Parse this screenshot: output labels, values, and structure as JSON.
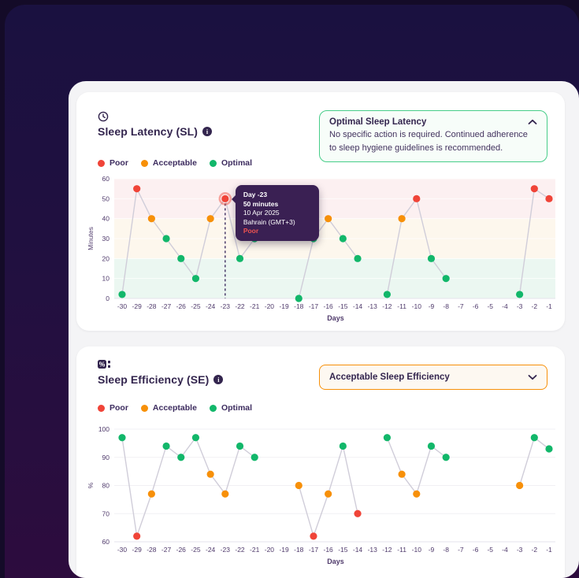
{
  "legend": [
    "Poor",
    "Acceptable",
    "Optimal"
  ],
  "colors": {
    "poor": "#f04438",
    "acceptable": "#f79009",
    "optimal": "#12b76a",
    "alert_border": "#47cd89",
    "dropdown_border": "#f79009",
    "tooltip_bg": "#3a2053",
    "tooltip_status_text": "#ef5350",
    "ink": "#33254e",
    "axis_text": "#4f3a6b"
  },
  "card_sl": {
    "title": "Sleep Latency (SL)",
    "alert": {
      "title": "Optimal Sleep Latency",
      "body": "No specific action is required. Continued adherence to sleep hygiene guidelines is recommended."
    },
    "tooltip": {
      "lines": [
        "Day -23",
        "50 minutes",
        "10 Apr 2025",
        "Bahrain (GMT+3)"
      ],
      "status": "Poor"
    }
  },
  "card_se": {
    "title": "Sleep Efficiency (SE)",
    "dropdown_value": "Acceptable Sleep Efficiency"
  },
  "chart_data": [
    {
      "type": "scatter",
      "title": "Sleep Latency (SL)",
      "xlabel": "Days",
      "ylabel": "Minutes",
      "ylim": [
        0,
        60
      ],
      "yticks": [
        0,
        10,
        20,
        30,
        40,
        50,
        60
      ],
      "x": [
        -30,
        -29,
        -28,
        -27,
        -26,
        -25,
        -24,
        -23,
        -22,
        -21,
        -20,
        -19,
        -18,
        -17,
        -16,
        -15,
        -14,
        -13,
        -12,
        -11,
        -10,
        -9,
        -8,
        -7,
        -6,
        -5,
        -4,
        -3,
        -2,
        -1
      ],
      "points": [
        {
          "day": -30,
          "value": 2,
          "status": "optimal"
        },
        {
          "day": -29,
          "value": 55,
          "status": "poor"
        },
        {
          "day": -28,
          "value": 40,
          "status": "acceptable"
        },
        {
          "day": -27,
          "value": 30,
          "status": "optimal"
        },
        {
          "day": -26,
          "value": 20,
          "status": "optimal"
        },
        {
          "day": -25,
          "value": 10,
          "status": "optimal"
        },
        {
          "day": -24,
          "value": 40,
          "status": "acceptable"
        },
        {
          "day": -23,
          "value": 50,
          "status": "poor"
        },
        {
          "day": -22,
          "value": 20,
          "status": "optimal"
        },
        {
          "day": -21,
          "value": 30,
          "status": "optimal"
        },
        {
          "day": -18,
          "value": 0,
          "status": "optimal"
        },
        {
          "day": -17,
          "value": 30,
          "status": "optimal"
        },
        {
          "day": -16,
          "value": 40,
          "status": "acceptable"
        },
        {
          "day": -15,
          "value": 30,
          "status": "optimal"
        },
        {
          "day": -14,
          "value": 20,
          "status": "optimal"
        },
        {
          "day": -12,
          "value": 2,
          "status": "optimal"
        },
        {
          "day": -11,
          "value": 40,
          "status": "acceptable"
        },
        {
          "day": -10,
          "value": 50,
          "status": "poor"
        },
        {
          "day": -9,
          "value": 20,
          "status": "optimal"
        },
        {
          "day": -8,
          "value": 10,
          "status": "optimal"
        },
        {
          "day": -3,
          "value": 2,
          "status": "optimal"
        },
        {
          "day": -2,
          "value": 55,
          "status": "poor"
        },
        {
          "day": -1,
          "value": 50,
          "status": "poor"
        }
      ],
      "bands": [
        {
          "from": 0,
          "to": 20,
          "color": "#ebf7f1"
        },
        {
          "from": 20,
          "to": 40,
          "color": "#fdf7ed"
        },
        {
          "from": 40,
          "to": 60,
          "color": "#fcf0f1"
        }
      ],
      "highlight": {
        "day": -23
      }
    },
    {
      "type": "scatter",
      "title": "Sleep Efficiency (SE)",
      "xlabel": "Days",
      "ylabel": "%",
      "ylim": [
        60,
        100
      ],
      "yticks": [
        60,
        70,
        80,
        90,
        100
      ],
      "x": [
        -30,
        -29,
        -28,
        -27,
        -26,
        -25,
        -24,
        -23,
        -22,
        -21,
        -20,
        -19,
        -18,
        -17,
        -16,
        -15,
        -14,
        -13,
        -12,
        -11,
        -10,
        -9,
        -8,
        -7,
        -6,
        -5,
        -4,
        -3,
        -2,
        -1
      ],
      "points": [
        {
          "day": -30,
          "value": 97,
          "status": "optimal"
        },
        {
          "day": -29,
          "value": 62,
          "status": "poor"
        },
        {
          "day": -28,
          "value": 77,
          "status": "acceptable"
        },
        {
          "day": -27,
          "value": 94,
          "status": "optimal"
        },
        {
          "day": -26,
          "value": 90,
          "status": "optimal"
        },
        {
          "day": -25,
          "value": 97,
          "status": "optimal"
        },
        {
          "day": -24,
          "value": 84,
          "status": "acceptable"
        },
        {
          "day": -23,
          "value": 77,
          "status": "acceptable"
        },
        {
          "day": -22,
          "value": 94,
          "status": "optimal"
        },
        {
          "day": -21,
          "value": 90,
          "status": "optimal"
        },
        {
          "day": -18,
          "value": 80,
          "status": "acceptable"
        },
        {
          "day": -17,
          "value": 62,
          "status": "poor"
        },
        {
          "day": -16,
          "value": 77,
          "status": "acceptable"
        },
        {
          "day": -15,
          "value": 94,
          "status": "optimal"
        },
        {
          "day": -14,
          "value": 70,
          "status": "poor"
        },
        {
          "day": -12,
          "value": 97,
          "status": "optimal"
        },
        {
          "day": -11,
          "value": 84,
          "status": "acceptable"
        },
        {
          "day": -10,
          "value": 77,
          "status": "acceptable"
        },
        {
          "day": -9,
          "value": 94,
          "status": "optimal"
        },
        {
          "day": -8,
          "value": 90,
          "status": "optimal"
        },
        {
          "day": -3,
          "value": 80,
          "status": "acceptable"
        },
        {
          "day": -2,
          "value": 97,
          "status": "optimal"
        },
        {
          "day": -1,
          "value": 93,
          "status": "optimal"
        }
      ],
      "bands": [],
      "highlight": null
    }
  ]
}
